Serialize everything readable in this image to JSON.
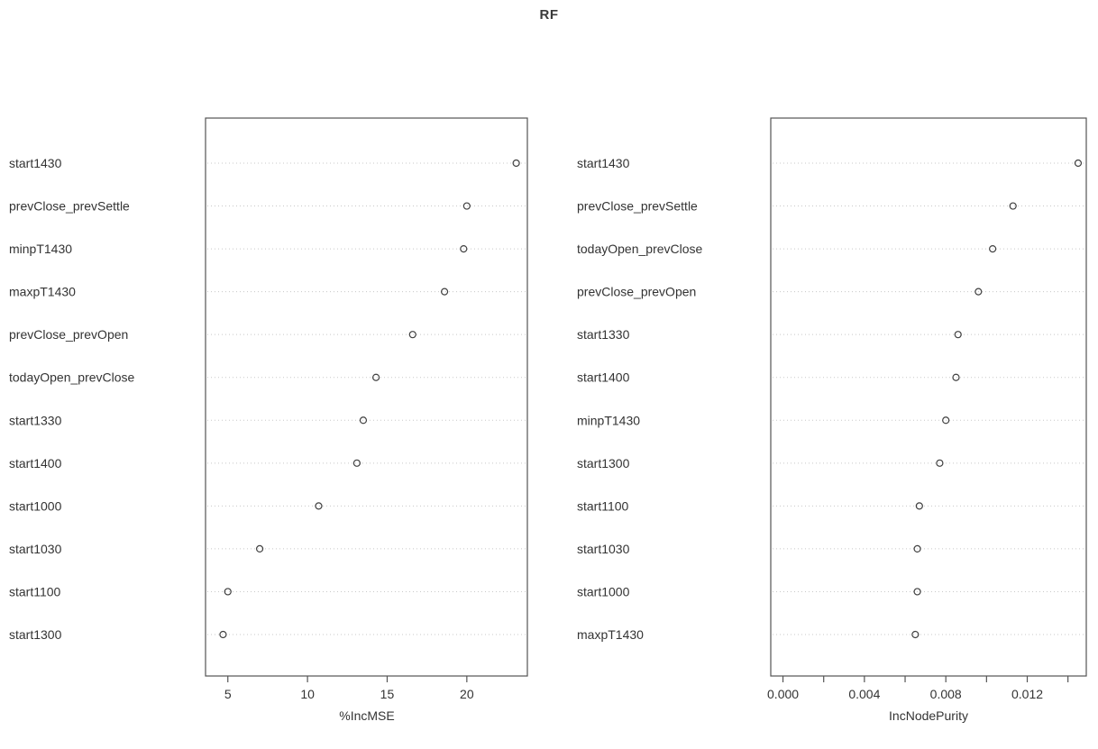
{
  "title": "RF",
  "colors": {
    "point_stroke": "#404040",
    "grid": "#c8c8c8",
    "box_border": "#545454",
    "tick": "#545454",
    "text": "#333333"
  },
  "chart_data": [
    {
      "type": "scatter",
      "variant": "dotchart",
      "title": "",
      "xlabel": "%IncMSE",
      "categories": [
        "start1430",
        "prevClose_prevSettle",
        "minpT1430",
        "maxpT1430",
        "prevClose_prevOpen",
        "todayOpen_prevClose",
        "start1330",
        "start1400",
        "start1000",
        "start1030",
        "start1100",
        "start1300"
      ],
      "values": [
        23.1,
        20.0,
        19.8,
        18.6,
        16.6,
        14.3,
        13.5,
        13.1,
        10.7,
        7.0,
        5.0,
        4.7
      ],
      "xlim": [
        3.6,
        23.8
      ],
      "xticks": [
        {
          "value": 5,
          "label": "5"
        },
        {
          "value": 10,
          "label": "10"
        },
        {
          "value": 15,
          "label": "15"
        },
        {
          "value": 20,
          "label": "20"
        }
      ],
      "grid": "dotted-horizontal",
      "marker": "open-circle",
      "legend": "none"
    },
    {
      "type": "scatter",
      "variant": "dotchart",
      "title": "",
      "xlabel": "IncNodePurity",
      "categories": [
        "start1430",
        "prevClose_prevSettle",
        "todayOpen_prevClose",
        "prevClose_prevOpen",
        "start1330",
        "start1400",
        "minpT1430",
        "start1300",
        "start1100",
        "start1030",
        "start1000",
        "maxpT1430"
      ],
      "values": [
        0.0145,
        0.0113,
        0.0103,
        0.0096,
        0.0086,
        0.0085,
        0.008,
        0.0077,
        0.0067,
        0.0066,
        0.0066,
        0.0065
      ],
      "xlim": [
        -0.0006,
        0.0149
      ],
      "xticks": [
        {
          "value": 0.0,
          "label": "0.000"
        },
        {
          "value": 0.002,
          "label": ""
        },
        {
          "value": 0.004,
          "label": "0.004"
        },
        {
          "value": 0.006,
          "label": ""
        },
        {
          "value": 0.008,
          "label": "0.008"
        },
        {
          "value": 0.01,
          "label": ""
        },
        {
          "value": 0.012,
          "label": "0.012"
        },
        {
          "value": 0.014,
          "label": ""
        }
      ],
      "grid": "dotted-horizontal",
      "marker": "open-circle",
      "legend": "none"
    }
  ]
}
